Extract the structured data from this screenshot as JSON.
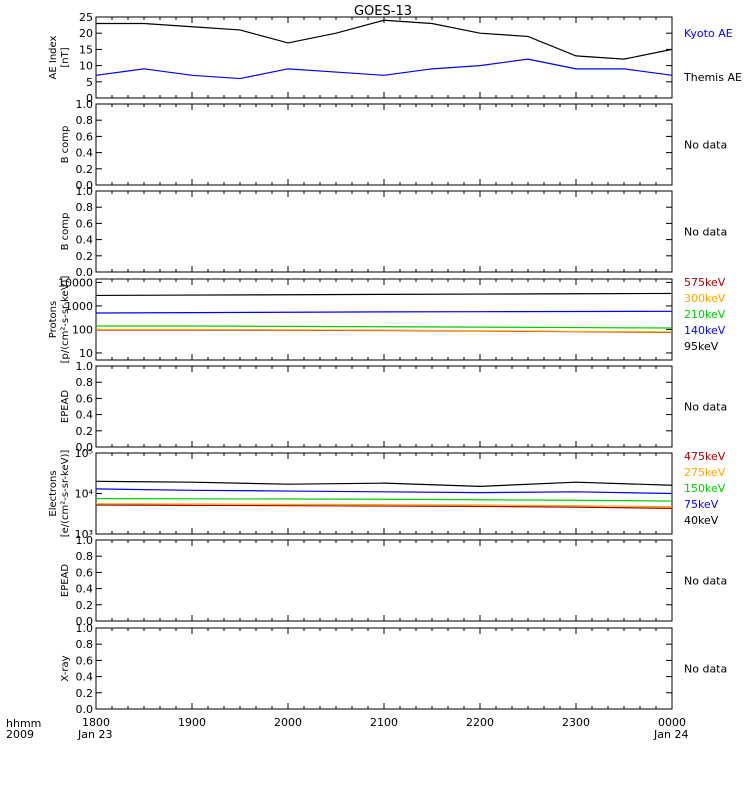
{
  "title": "GOES-13",
  "x_axis": {
    "left_labels": [
      "hhmm",
      "2009"
    ],
    "tick_labels": [
      "1800",
      "1900",
      "2000",
      "2100",
      "2200",
      "2300",
      "0000"
    ],
    "date_left": "Jan 23",
    "date_right": "Jan 24"
  },
  "chart_data": [
    {
      "type": "line",
      "title": "",
      "ylabel": "AE Index [nT]",
      "ylabel_lines": [
        "AE Index",
        "[nT]"
      ],
      "scale": "linear",
      "ylim": [
        0,
        25
      ],
      "yticks": [
        0,
        5,
        10,
        15,
        20,
        25
      ],
      "ytick_labels": [
        "0",
        "5",
        "10",
        "15",
        "20",
        "25"
      ],
      "x": [
        "1800",
        "1830",
        "1900",
        "1930",
        "2000",
        "2030",
        "2100",
        "2130",
        "2200",
        "2230",
        "2300",
        "2330",
        "0000"
      ],
      "series": [
        {
          "name": "Kyoto AE",
          "color": "#0000ff",
          "values": [
            7,
            9,
            7,
            6,
            9,
            8,
            7,
            9,
            10,
            12,
            9,
            9,
            7
          ]
        },
        {
          "name": "Themis AE",
          "color": "#000000",
          "values": [
            23,
            23,
            22,
            21,
            17,
            20,
            24,
            23,
            20,
            19,
            13,
            12,
            15
          ]
        }
      ]
    },
    {
      "type": "line",
      "title": "",
      "ylabel": "B comp",
      "ylabel_lines": [
        "B comp"
      ],
      "scale": "linear",
      "ylim": [
        0,
        1
      ],
      "yticks": [
        0,
        0.2,
        0.4,
        0.6,
        0.8,
        1.0
      ],
      "ytick_labels": [
        "0.0",
        "0.2",
        "0.4",
        "0.6",
        "0.8",
        "1.0"
      ],
      "series": [],
      "no_data_text": "No data"
    },
    {
      "type": "line",
      "title": "",
      "ylabel": "B comp",
      "ylabel_lines": [
        "B comp"
      ],
      "scale": "linear",
      "ylim": [
        0,
        1
      ],
      "yticks": [
        0,
        0.2,
        0.4,
        0.6,
        0.8,
        1.0
      ],
      "ytick_labels": [
        "0.0",
        "0.2",
        "0.4",
        "0.6",
        "0.8",
        "1.0"
      ],
      "series": [],
      "no_data_text": "No data"
    },
    {
      "type": "line",
      "title": "",
      "ylabel": "Protons [p/(cm2-s-sr-keV)]",
      "ylabel_lines": [
        "Protons",
        "[p/(cm²-s-sr-keV)]"
      ],
      "scale": "log",
      "ylim": [
        5,
        14000
      ],
      "yticks": [
        10,
        100,
        1000,
        10000
      ],
      "ytick_labels": [
        "10",
        "100",
        "1000",
        "10000"
      ],
      "x": [
        "1800",
        "1900",
        "2000",
        "2100",
        "2200",
        "2300",
        "0000"
      ],
      "series": [
        {
          "name": "575keV",
          "color": "#aa0000",
          "values": [
            95,
            95,
            92,
            90,
            85,
            80,
            75
          ]
        },
        {
          "name": "300keV",
          "color": "#ffa500",
          "values": [
            100,
            100,
            96,
            93,
            88,
            82,
            78
          ]
        },
        {
          "name": "210keV",
          "color": "#00cc00",
          "values": [
            140,
            140,
            135,
            130,
            125,
            120,
            115
          ]
        },
        {
          "name": "140keV",
          "color": "#0000ff",
          "values": [
            500,
            520,
            540,
            560,
            570,
            580,
            590
          ]
        },
        {
          "name": "95keV",
          "color": "#000000",
          "values": [
            2800,
            2900,
            3000,
            3100,
            3200,
            3300,
            3400
          ]
        }
      ]
    },
    {
      "type": "line",
      "title": "",
      "ylabel": "EPEAD",
      "ylabel_lines": [
        "EPEAD"
      ],
      "scale": "linear",
      "ylim": [
        0,
        1
      ],
      "yticks": [
        0,
        0.2,
        0.4,
        0.6,
        0.8,
        1.0
      ],
      "ytick_labels": [
        "0.0",
        "0.2",
        "0.4",
        "0.6",
        "0.8",
        "1.0"
      ],
      "series": [],
      "no_data_text": "No data"
    },
    {
      "type": "line",
      "title": "",
      "ylabel": "Electrons [e/(cm2-s-sr-keV)]",
      "ylabel_lines": [
        "Electrons",
        "[e/(cm²-s-sr-keV)]"
      ],
      "scale": "log",
      "ylim": [
        1000,
        100000
      ],
      "yticks": [
        1000,
        10000,
        100000
      ],
      "ytick_labels": [
        "10³",
        "10⁴",
        "10⁵"
      ],
      "x": [
        "1800",
        "1900",
        "2000",
        "2100",
        "2200",
        "2300",
        "0000"
      ],
      "series": [
        {
          "name": "475keV",
          "color": "#aa0000",
          "values": [
            5200,
            5100,
            5000,
            4900,
            4800,
            4600,
            4300
          ]
        },
        {
          "name": "275keV",
          "color": "#ffa500",
          "values": [
            5600,
            5500,
            5400,
            5300,
            5200,
            5000,
            4700
          ]
        },
        {
          "name": "150keV",
          "color": "#00cc00",
          "values": [
            7500,
            7400,
            7300,
            7200,
            7000,
            6800,
            6500
          ]
        },
        {
          "name": "75keV",
          "color": "#0000ff",
          "values": [
            13000,
            12000,
            11500,
            11000,
            10500,
            11000,
            10000
          ]
        },
        {
          "name": "40keV",
          "color": "#000000",
          "values": [
            20000,
            19000,
            17000,
            18000,
            15000,
            19000,
            16000
          ]
        }
      ]
    },
    {
      "type": "line",
      "title": "",
      "ylabel": "EPEAD",
      "ylabel_lines": [
        "EPEAD"
      ],
      "scale": "linear",
      "ylim": [
        0,
        1
      ],
      "yticks": [
        0,
        0.2,
        0.4,
        0.6,
        0.8,
        1.0
      ],
      "ytick_labels": [
        "0.0",
        "0.2",
        "0.4",
        "0.6",
        "0.8",
        "1.0"
      ],
      "series": [],
      "no_data_text": "No data"
    },
    {
      "type": "line",
      "title": "",
      "ylabel": "X-ray",
      "ylabel_lines": [
        "X-ray"
      ],
      "scale": "linear",
      "ylim": [
        0,
        1
      ],
      "yticks": [
        0,
        0.2,
        0.4,
        0.6,
        0.8,
        1.0
      ],
      "ytick_labels": [
        "0.0",
        "0.2",
        "0.4",
        "0.6",
        "0.8",
        "1.0"
      ],
      "series": [],
      "no_data_text": "No data"
    }
  ]
}
